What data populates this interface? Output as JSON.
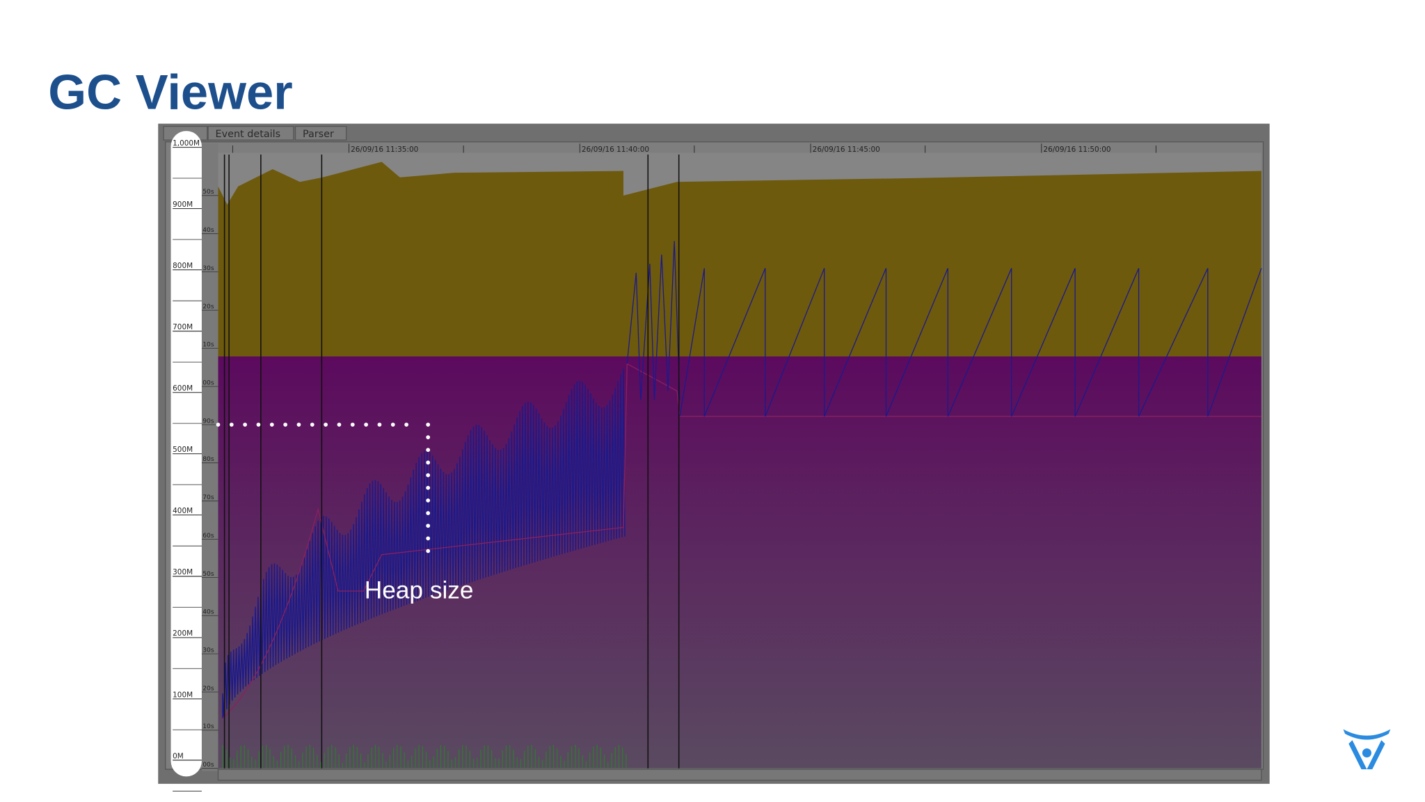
{
  "title": "GC Viewer",
  "tabs": [
    "Event details",
    "Parser"
  ],
  "memory_axis": [
    "1,000M",
    "900M",
    "800M",
    "700M",
    "600M",
    "500M",
    "400M",
    "300M",
    "200M",
    "100M",
    "0M"
  ],
  "pause_axis": [
    "50s",
    "40s",
    "30s",
    "20s",
    "10s",
    "00s",
    "90s",
    "80s",
    "70s",
    "60s",
    "50s",
    "40s",
    "30s",
    "20s",
    "10s",
    "00s"
  ],
  "time_axis": [
    "26/09/16 11:35:00",
    "26/09/16 11:40:00",
    "26/09/16 11:45:00",
    "26/09/16 11:50:00"
  ],
  "annotation": "Heap size"
}
